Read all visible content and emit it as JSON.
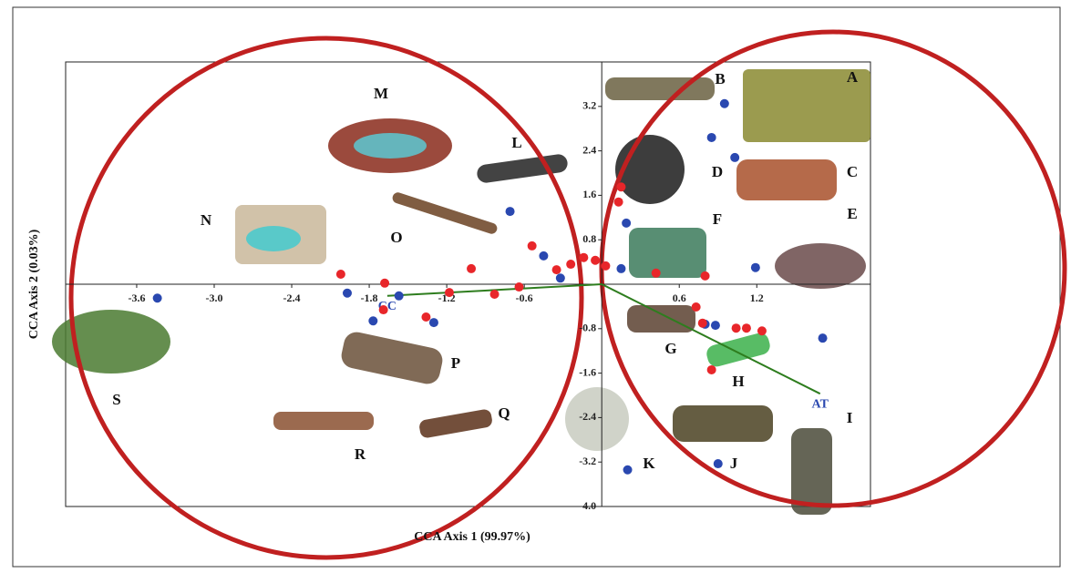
{
  "chart_data": {
    "type": "scatter",
    "x_label": "CCA Axis 1 (99.97%)",
    "y_label": "CCA Axis 2 (0.03%)",
    "xlim": [
      -4.15,
      2.08
    ],
    "ylim": [
      -4,
      4
    ],
    "xticks": [
      -3.6,
      {
        "value": -3,
        "label": "-3.0"
      },
      -2.4,
      -1.8,
      -1.2,
      -0.6,
      0.6,
      1.2
    ],
    "yticks": [
      {
        "value": -4,
        "label": "-4.0"
      },
      -3.2,
      -2.4,
      -1.6,
      -0.8,
      0.8,
      1.6,
      2.4,
      3.2
    ],
    "series": [
      {
        "color": "#2a48b0",
        "x": [
          -3.44,
          -1.97,
          -1.77,
          -1.57,
          -1.3,
          -0.71,
          -0.45,
          -0.32,
          0.19,
          0.15,
          0.85,
          0.95,
          1.03,
          1.19,
          0.8,
          0.88,
          1.71,
          0.9,
          0.2
        ],
        "values": [
          -0.25,
          -0.16,
          -0.66,
          -0.21,
          -0.69,
          1.31,
          0.51,
          0.11,
          1.1,
          0.28,
          2.64,
          3.25,
          2.28,
          0.3,
          -0.72,
          -0.74,
          -0.97,
          -3.23,
          -3.34
        ]
      },
      {
        "color": "#e8262a",
        "x": [
          -2.02,
          -1.68,
          -1.69,
          -1.36,
          -1.18,
          -1.01,
          -0.83,
          -0.64,
          -0.54,
          -0.35,
          -0.24,
          -0.14,
          -0.05,
          0.03,
          0.13,
          0.15,
          0.42,
          0.8,
          0.73,
          0.78,
          1.04,
          1.12,
          1.24,
          0.85
        ],
        "values": [
          0.18,
          0.02,
          -0.46,
          -0.59,
          -0.15,
          0.28,
          -0.18,
          -0.05,
          0.69,
          0.26,
          0.36,
          0.48,
          0.43,
          0.33,
          1.48,
          1.75,
          0.2,
          0.15,
          -0.41,
          -0.7,
          -0.79,
          -0.79,
          -0.84,
          -1.54
        ]
      }
    ],
    "vectors": [
      {
        "name": "CC",
        "x": -1.66,
        "y": -0.21
      },
      {
        "name": "AT",
        "x": 1.69,
        "y": -1.97
      }
    ],
    "vector_color": "#2e7d1e",
    "letters": [
      "A",
      "B",
      "C",
      "D",
      "E",
      "F",
      "G",
      "H",
      "I",
      "J",
      "K",
      "L",
      "M",
      "N",
      "O",
      "P",
      "Q",
      "R",
      "S"
    ]
  }
}
